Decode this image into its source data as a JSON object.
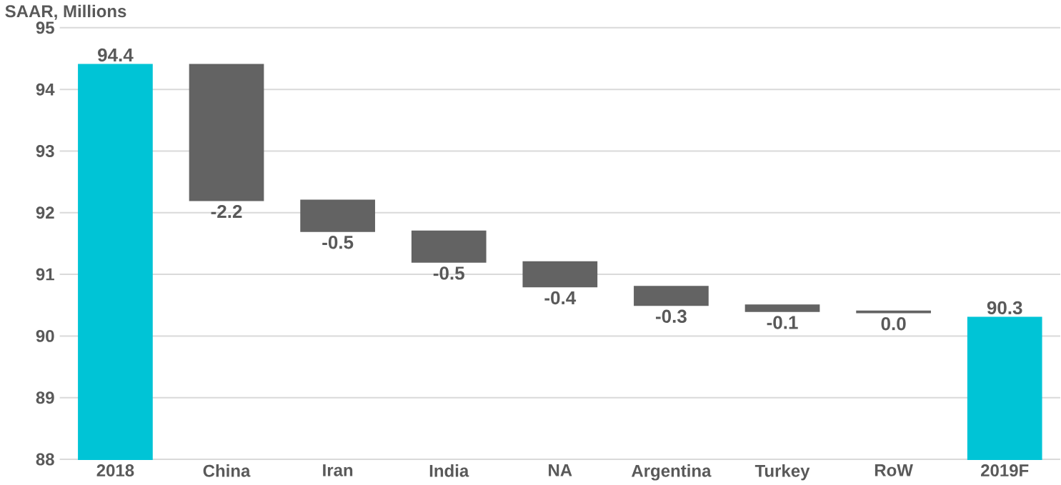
{
  "chart_data": {
    "type": "bar",
    "ylabel": "SAAR, Millions",
    "categories": [
      "2018",
      "China",
      "Iran",
      "India",
      "NA",
      "Argentina",
      "Turkey",
      "RoW",
      "2019F"
    ],
    "base": [
      88,
      94.4,
      92.2,
      91.7,
      91.2,
      90.8,
      90.5,
      90.4,
      88
    ],
    "values": [
      6.4,
      -2.2,
      -0.5,
      -0.5,
      -0.4,
      -0.3,
      -0.1,
      -0.02,
      2.3
    ],
    "value_labels": [
      "94.4",
      "-2.2",
      "-0.5",
      "-0.5",
      "-0.4",
      "-0.3",
      "-0.1",
      "0.0",
      "90.3"
    ],
    "colors": [
      "#00c4d6",
      "#636363",
      "#636363",
      "#636363",
      "#636363",
      "#636363",
      "#636363",
      "#636363",
      "#00c4d6"
    ],
    "ylim": [
      88,
      95
    ],
    "yticks": [
      88,
      89,
      90,
      91,
      92,
      93,
      94,
      95
    ],
    "grid": "y"
  }
}
